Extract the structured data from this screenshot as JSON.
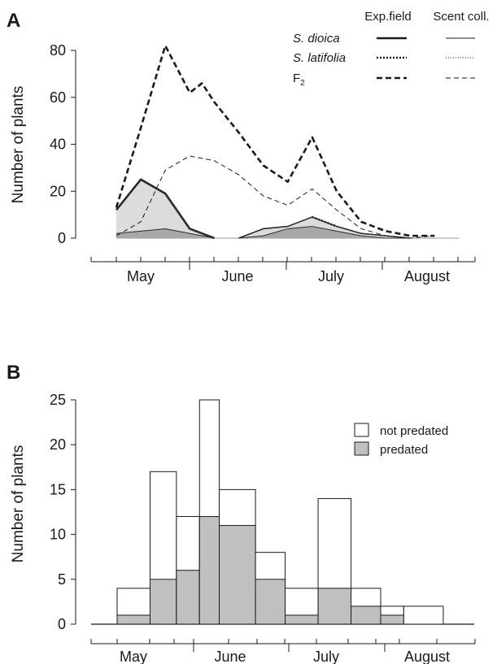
{
  "chart_data": [
    {
      "panel_label": "A",
      "type": "line",
      "ylabel": "Number of plants",
      "ylim": [
        0,
        85
      ],
      "yticks": [
        "0",
        "20",
        "40",
        "60",
        "80"
      ],
      "x_points": [
        1,
        2,
        3,
        4,
        5,
        6,
        7,
        8,
        9,
        10,
        11,
        12,
        13,
        14,
        15
      ],
      "months": [
        "May",
        "June",
        "July",
        "August"
      ],
      "legend": {
        "col_exp": "Exp.field",
        "col_scent": "Scent coll.",
        "rows": [
          {
            "label": "S. dioica",
            "italic": true,
            "style": "solid"
          },
          {
            "label": "S. latifolia",
            "italic": true,
            "style": "dotted"
          },
          {
            "label": "F",
            "sub": "2",
            "italic": false,
            "style": "dashed"
          }
        ]
      },
      "series": [
        {
          "name": "S. dioica",
          "field": "Exp.field",
          "points": [
            [
              1,
              12
            ],
            [
              2,
              25
            ],
            [
              3,
              19
            ],
            [
              4,
              4
            ],
            [
              5,
              0
            ]
          ],
          "fill": "#dcdcdc",
          "stroke": "#2a2a2a",
          "width": 2.6,
          "dash": ""
        },
        {
          "name": "S. dioica",
          "field": "Scent coll.",
          "points": [
            [
              1,
              2
            ],
            [
              2,
              3
            ],
            [
              3,
              4
            ],
            [
              4,
              2
            ],
            [
              5,
              0
            ]
          ],
          "fill": "#a8a8a8",
          "stroke": "#2a2a2a",
          "width": 1,
          "dash": ""
        },
        {
          "name": "S. dioica",
          "field": "Exp.field",
          "points": [
            [
              6,
              0
            ],
            [
              7,
              4
            ],
            [
              8,
              5
            ],
            [
              9,
              9
            ],
            [
              10,
              5
            ],
            [
              11,
              2
            ],
            [
              12,
              1
            ],
            [
              13,
              0
            ]
          ],
          "fill": "#dcdcdc",
          "stroke": "#2a2a2a",
          "width": 1.6,
          "dash": ""
        },
        {
          "name": "S. dioica",
          "field": "Scent coll.",
          "points": [
            [
              6,
              0
            ],
            [
              7,
              1
            ],
            [
              8,
              4
            ],
            [
              9,
              5
            ],
            [
              10,
              3
            ],
            [
              11,
              1
            ],
            [
              12,
              0
            ],
            [
              13,
              0
            ]
          ],
          "fill": "#a8a8a8",
          "stroke": "#2a2a2a",
          "width": 1,
          "dash": ""
        },
        {
          "name": "S. latifolia",
          "field": "Exp.field",
          "points": [
            [
              9,
              9
            ],
            [
              10,
              5
            ]
          ],
          "fill": "",
          "stroke": "#2a2a2a",
          "width": 2.4,
          "dash": "2 2"
        },
        {
          "name": "F2",
          "field": "Exp.field",
          "points": [
            [
              1,
              13
            ],
            [
              2,
              47
            ],
            [
              3,
              82
            ],
            [
              4,
              62
            ],
            [
              4.5,
              66
            ],
            [
              5,
              58
            ],
            [
              6,
              45
            ],
            [
              7,
              31
            ],
            [
              8,
              24
            ],
            [
              9,
              43
            ],
            [
              10,
              20
            ],
            [
              11,
              7
            ],
            [
              12,
              3
            ],
            [
              13,
              1
            ],
            [
              14,
              1
            ]
          ],
          "fill": "",
          "stroke": "#1a1a1a",
          "width": 2.6,
          "dash": "7 4"
        },
        {
          "name": "F2",
          "field": "Scent coll.",
          "points": [
            [
              1,
              1
            ],
            [
              2,
              7
            ],
            [
              3,
              29
            ],
            [
              4,
              35
            ],
            [
              5,
              33
            ],
            [
              6,
              27
            ],
            [
              7,
              18
            ],
            [
              8,
              14
            ],
            [
              9,
              21
            ],
            [
              10,
              12
            ],
            [
              11,
              4
            ],
            [
              12,
              1
            ],
            [
              13,
              0
            ],
            [
              14,
              1
            ]
          ],
          "fill": "",
          "stroke": "#1a1a1a",
          "width": 1,
          "dash": "6 4"
        }
      ]
    },
    {
      "panel_label": "B",
      "type": "bar",
      "ylabel": "Number of plants",
      "ylim": [
        0,
        26
      ],
      "yticks": [
        "0",
        "5",
        "10",
        "15",
        "20",
        "25"
      ],
      "months": [
        "May",
        "June",
        "July",
        "August"
      ],
      "legend": [
        {
          "label": "not predated",
          "color": "#ffffff"
        },
        {
          "label": "predated",
          "color": "#c0c0c0"
        }
      ],
      "bins": [
        {
          "start": 1.0,
          "end": 2.0,
          "total": 4,
          "predated": 1
        },
        {
          "start": 2.0,
          "end": 2.8,
          "total": 17,
          "predated": 5
        },
        {
          "start": 2.8,
          "end": 3.5,
          "total": 12,
          "predated": 6
        },
        {
          "start": 3.5,
          "end": 4.1,
          "total": 25,
          "predated": 12
        },
        {
          "start": 4.1,
          "end": 5.2,
          "total": 15,
          "predated": 11
        },
        {
          "start": 5.2,
          "end": 6.1,
          "total": 8,
          "predated": 5
        },
        {
          "start": 6.1,
          "end": 7.1,
          "total": 4,
          "predated": 1
        },
        {
          "start": 7.1,
          "end": 8.1,
          "total": 14,
          "predated": 4
        },
        {
          "start": 8.1,
          "end": 9.0,
          "total": 4,
          "predated": 2
        },
        {
          "start": 9.0,
          "end": 9.7,
          "total": 2,
          "predated": 1
        },
        {
          "start": 9.7,
          "end": 10.9,
          "total": 2,
          "predated": 0
        }
      ]
    }
  ]
}
